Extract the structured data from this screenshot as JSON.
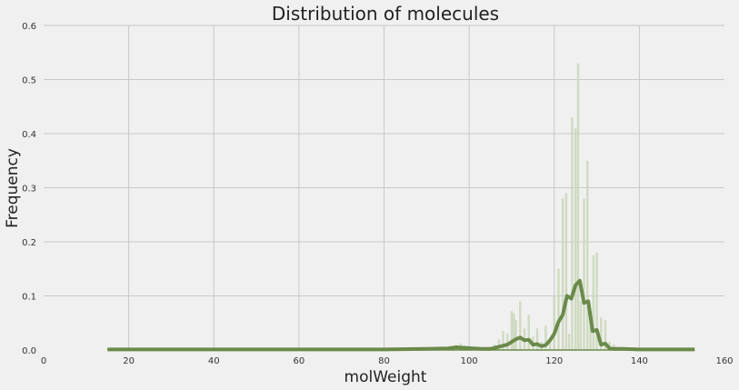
{
  "chart_data": {
    "type": "line",
    "title": "Distribution of molecules",
    "xlabel": "molWeight",
    "ylabel": "Frequency",
    "xlim": [
      0,
      160
    ],
    "ylim": [
      0,
      0.6
    ],
    "xticks": [
      0,
      20,
      40,
      60,
      80,
      100,
      120,
      140,
      160
    ],
    "yticks": [
      0.0,
      0.1,
      0.2,
      0.3,
      0.4,
      0.5,
      0.6
    ],
    "xtick_labels": [
      "0",
      "20",
      "40",
      "60",
      "80",
      "100",
      "120",
      "140",
      "160"
    ],
    "ytick_labels": [
      "0.0",
      "0.1",
      "0.2",
      "0.3",
      "0.4",
      "0.5",
      "0.6"
    ],
    "grid": true,
    "colors": {
      "line": "#6a8a4a",
      "bars": "#c9d6b8",
      "background": "#f0f0f0",
      "grid": "#c8c8c8"
    },
    "series": [
      {
        "kind": "density",
        "x": [
          15,
          80,
          90,
          95,
          97,
          99,
          101,
          103,
          105,
          107,
          109,
          110,
          111,
          112,
          113,
          114,
          115,
          116,
          117,
          118,
          119,
          120,
          121,
          122,
          123,
          124,
          125,
          126,
          127,
          128,
          129,
          130,
          131,
          132,
          133,
          134,
          136,
          140,
          145,
          150,
          153
        ],
        "y": [
          0.001,
          0.001,
          0.002,
          0.003,
          0.005,
          0.004,
          0.003,
          0.002,
          0.002,
          0.006,
          0.01,
          0.015,
          0.02,
          0.023,
          0.018,
          0.019,
          0.01,
          0.011,
          0.007,
          0.009,
          0.018,
          0.03,
          0.052,
          0.065,
          0.1,
          0.095,
          0.12,
          0.128,
          0.087,
          0.09,
          0.035,
          0.037,
          0.01,
          0.012,
          0.003,
          0.002,
          0.002,
          0.001,
          0.001,
          0.001,
          0.001
        ]
      },
      {
        "kind": "histogram",
        "x": [
          95,
          96,
          97,
          98,
          99,
          100,
          101,
          102,
          103,
          104,
          105,
          106,
          107,
          108,
          109,
          110,
          110.5,
          111,
          112,
          113,
          114,
          115,
          116,
          117,
          118,
          119,
          120,
          121,
          122,
          122.8,
          123.5,
          124.2,
          125,
          125.6,
          126.2,
          127,
          127.8,
          128.5,
          129.2,
          130,
          131,
          132,
          133,
          134,
          135,
          136,
          138,
          140,
          142,
          145
        ],
        "y": [
          0.005,
          0.007,
          0.009,
          0.012,
          0.008,
          0.006,
          0.004,
          0.003,
          0.003,
          0.004,
          0.006,
          0.01,
          0.02,
          0.035,
          0.03,
          0.072,
          0.068,
          0.055,
          0.09,
          0.04,
          0.065,
          0.025,
          0.04,
          0.015,
          0.045,
          0.015,
          0.1,
          0.15,
          0.28,
          0.29,
          0.03,
          0.43,
          0.41,
          0.53,
          0.09,
          0.28,
          0.35,
          0.07,
          0.175,
          0.18,
          0.06,
          0.055,
          0.015,
          0.01,
          0.006,
          0.004,
          0.003,
          0.002,
          0.002,
          0.001
        ]
      }
    ]
  }
}
